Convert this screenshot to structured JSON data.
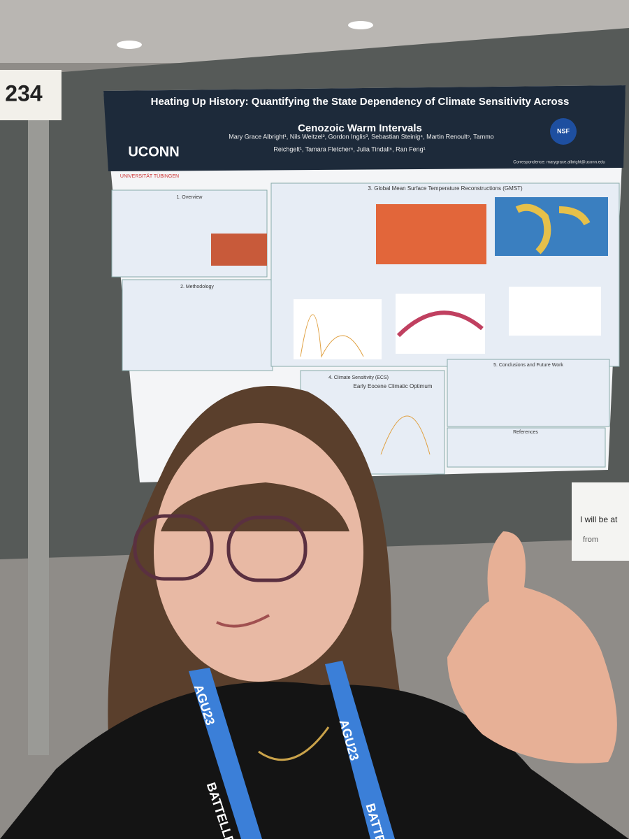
{
  "booth_number": "234",
  "poster": {
    "title_line1": "Heating Up History: Quantifying the State Dependency of Climate Sensitivity Across",
    "title_line2": "Cenozoic Warm Intervals",
    "logo": "UCONN",
    "university": "UNIVERSITÄT TÜBINGEN",
    "funder": "NSF",
    "authors_line1": "Mary Grace Albright¹, Nils Weitzel², Gordon Inglis³, Sebastian Steinig⁴, Martin Renoult⁵, Tammo",
    "authors_line2": "Reichgelt¹, Tamara Fletcher⁶, Julia Tindall⁶, Ran Feng¹",
    "correspondence": "Correspondence: marygrace.albright@uconn.edu",
    "sections": [
      "1. Overview",
      "2. Methodology",
      "3. Global Mean Surface Temperature Reconstructions (GMST)",
      "4. Climate Sensitivity (ECS)",
      "5. Conclusions and Future Work",
      "References"
    ],
    "figure_title": "Early Eocene Climatic Optimum"
  },
  "sign": {
    "line1": "I will be at",
    "line2": "from"
  },
  "lanyard": {
    "event": "AGU23",
    "sponsor": "BATTELLE"
  }
}
